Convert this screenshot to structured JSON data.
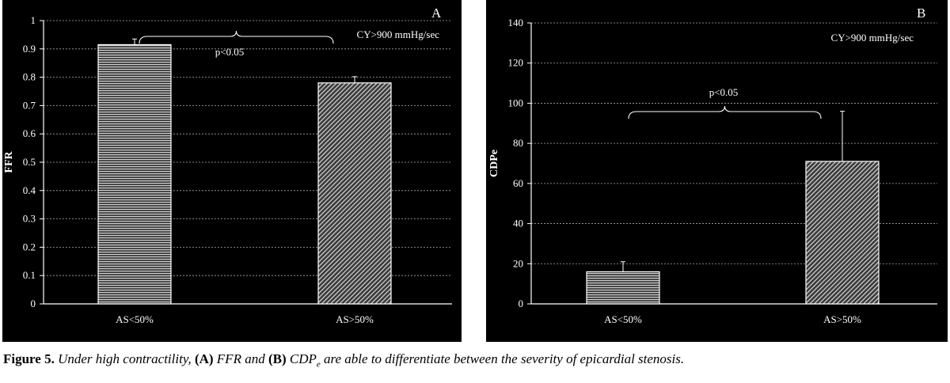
{
  "chart_data": [
    {
      "type": "bar",
      "panel_letter": "A",
      "categories": [
        "AS<50%",
        "AS>50%"
      ],
      "values": [
        0.915,
        0.78
      ],
      "errors": [
        0.02,
        0.022
      ],
      "ylabel": "FFR",
      "xlabel": "",
      "ylim": [
        0,
        1
      ],
      "yticks": [
        0,
        0.1,
        0.2,
        0.3,
        0.4,
        0.5,
        0.6,
        0.7,
        0.8,
        0.9,
        1
      ],
      "ytick_labels": [
        "0",
        "0.1",
        "0.2",
        "0.3",
        "0.4",
        "0.5",
        "0.6",
        "0.7",
        "0.8",
        "0.9",
        "1"
      ],
      "grid": true,
      "annotation": "CY>900 mmHg/sec",
      "significance": "p<0.05"
    },
    {
      "type": "bar",
      "panel_letter": "B",
      "categories": [
        "AS<50%",
        "AS>50%"
      ],
      "values": [
        16,
        71
      ],
      "errors": [
        5,
        25
      ],
      "ylabel": "CDPe",
      "xlabel": "",
      "ylim": [
        0,
        140
      ],
      "yticks": [
        0,
        20,
        40,
        60,
        80,
        100,
        120,
        140
      ],
      "ytick_labels": [
        "0",
        "20",
        "40",
        "60",
        "80",
        "100",
        "120",
        "140"
      ],
      "grid": true,
      "annotation": "CY>900 mmHg/sec",
      "significance": "p<0.05"
    }
  ],
  "caption": {
    "label": "Figure 5.",
    "part1": "Under high contractility,",
    "a_tag": "(A)",
    "part2": "FFR and",
    "b_tag": "(B)",
    "part3": "CDP",
    "sub": "e",
    "part4": "are able to differentiate between the severity of epicardial stenosis."
  },
  "colors": {
    "background": "#000000",
    "axis": "#ffffff",
    "bar_fill": "#555555"
  }
}
